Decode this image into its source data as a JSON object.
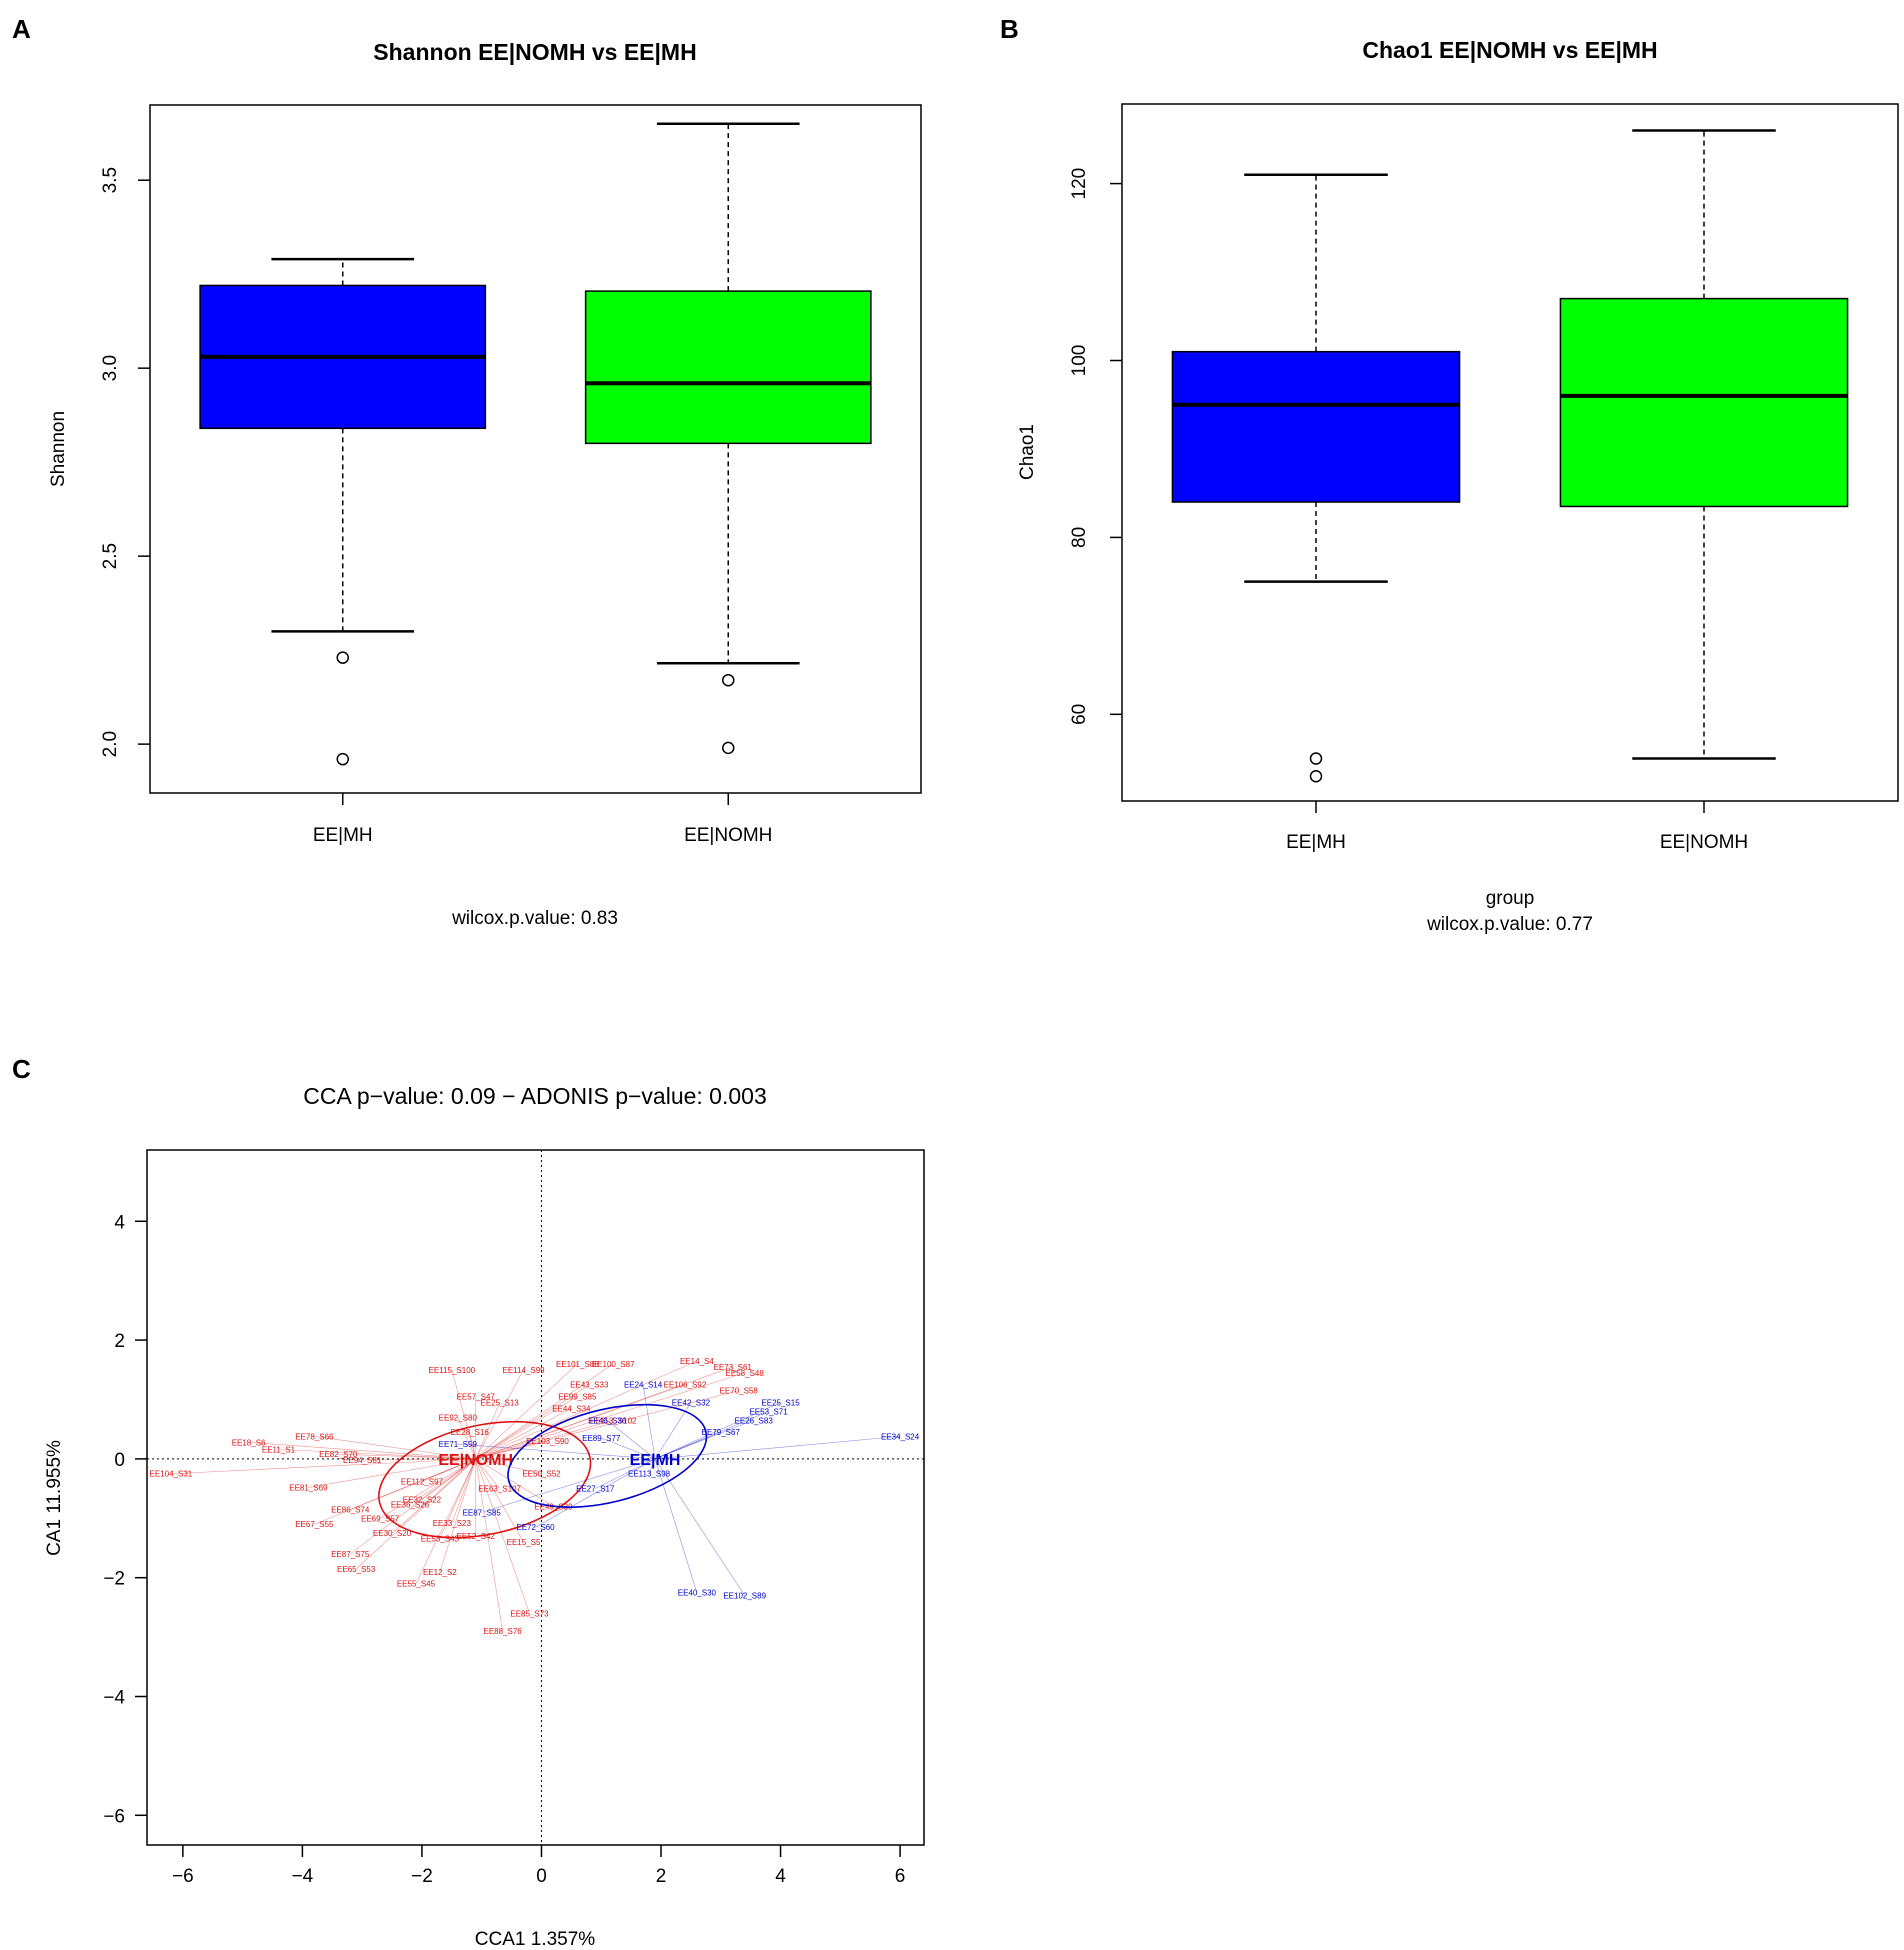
{
  "colors": {
    "mh": "#0000ff",
    "nomh": "#00ff00",
    "cca_mh": "#0000cc",
    "cca_nomh": "#dd1111"
  },
  "chart_data": [
    {
      "panel": "A",
      "type": "box",
      "title": "Shannon EE|NOMH vs EE|MH",
      "ylabel": "Shannon",
      "xlabel": "",
      "footnote": "wilcox.p.value: 0.83",
      "ylim": [
        1.87,
        3.7
      ],
      "yticks": [
        2.0,
        2.5,
        3.0,
        3.5
      ],
      "ytick_labels": [
        "2.0",
        "2.5",
        "3.0",
        "3.5"
      ],
      "categories": [
        "EE|MH",
        "EE|NOMH"
      ],
      "boxes": [
        {
          "name": "EE|MH",
          "whisker_low": 2.3,
          "q1": 2.84,
          "median": 3.03,
          "q3": 3.22,
          "whisker_high": 3.29,
          "outliers": [
            2.23,
            1.96
          ]
        },
        {
          "name": "EE|NOMH",
          "whisker_low": 2.215,
          "q1": 2.8,
          "median": 2.96,
          "q3": 3.205,
          "whisker_high": 3.65,
          "outliers": [
            2.17,
            1.99
          ]
        }
      ]
    },
    {
      "panel": "B",
      "type": "box",
      "title": "Chao1 EE|NOMH vs EE|MH",
      "ylabel": "Chao1",
      "xlabel": "group",
      "footnote": "wilcox.p.value: 0.77",
      "ylim": [
        50.2,
        129
      ],
      "yticks": [
        60,
        80,
        100,
        120
      ],
      "ytick_labels": [
        "60",
        "80",
        "100",
        "120"
      ],
      "categories": [
        "EE|MH",
        "EE|NOMH"
      ],
      "boxes": [
        {
          "name": "EE|MH",
          "whisker_low": 75,
          "q1": 84,
          "median": 95,
          "q3": 101,
          "whisker_high": 121,
          "outliers": [
            55,
            53
          ]
        },
        {
          "name": "EE|NOMH",
          "whisker_low": 55,
          "q1": 83.5,
          "median": 96,
          "q3": 107,
          "whisker_high": 126,
          "outliers": []
        }
      ]
    },
    {
      "panel": "C",
      "type": "scatter",
      "title": "CCA p−value: 0.09 − ADONIS p−value: 0.003",
      "xlabel": "CCA1  1.357%",
      "ylabel": "CA1  11.955%",
      "xlim": [
        -6.6,
        6.4
      ],
      "ylim": [
        -6.5,
        5.2
      ],
      "xticks": [
        -6,
        -4,
        -2,
        0,
        2,
        4,
        6
      ],
      "xtick_labels": [
        "−6",
        "−4",
        "−2",
        "0",
        "2",
        "4",
        "6"
      ],
      "yticks": [
        -6,
        -4,
        -2,
        0,
        2,
        4
      ],
      "ytick_labels": [
        "−6",
        "−4",
        "−2",
        "0",
        "2",
        "4"
      ],
      "groups": [
        {
          "name": "EE|NOMH",
          "centroid": [
            -1.1,
            0.0
          ],
          "ellipse": {
            "cx": -0.95,
            "cy": -0.35,
            "rx": 1.8,
            "ry": 0.92,
            "angle_deg": 12
          },
          "points": [
            {
              "label": "EE104_S31",
              "x": -6.2,
              "y": -0.25
            },
            {
              "label": "EE18_S6",
              "x": -4.9,
              "y": 0.28
            },
            {
              "label": "EE11_S1",
              "x": -4.4,
              "y": 0.16
            },
            {
              "label": "EE78_S66",
              "x": -3.8,
              "y": 0.38
            },
            {
              "label": "EE81_S69",
              "x": -3.9,
              "y": -0.48
            },
            {
              "label": "EE82_S70",
              "x": -3.4,
              "y": 0.08
            },
            {
              "label": "EE94_S81",
              "x": -3.0,
              "y": -0.02
            },
            {
              "label": "EE86_S74",
              "x": -3.2,
              "y": -0.85
            },
            {
              "label": "EE67_S55",
              "x": -3.8,
              "y": -1.1
            },
            {
              "label": "EE87_S75",
              "x": -3.2,
              "y": -1.6
            },
            {
              "label": "EE65_S53",
              "x": -3.1,
              "y": -1.85
            },
            {
              "label": "EE69_S57",
              "x": -2.7,
              "y": -1.0
            },
            {
              "label": "EE30_S20",
              "x": -2.5,
              "y": -1.25
            },
            {
              "label": "EE55_S45",
              "x": -2.1,
              "y": -2.1
            },
            {
              "label": "EE12_S2",
              "x": -1.7,
              "y": -1.9
            },
            {
              "label": "EE32_S22",
              "x": -2.0,
              "y": -0.68
            },
            {
              "label": "EE36_S26",
              "x": -2.2,
              "y": -0.77
            },
            {
              "label": "EE33_S23",
              "x": -1.5,
              "y": -1.08
            },
            {
              "label": "EE53_S43",
              "x": -1.7,
              "y": -1.34
            },
            {
              "label": "EE52_S42",
              "x": -1.1,
              "y": -1.3
            },
            {
              "label": "EE112_S97",
              "x": -2.0,
              "y": -0.38
            },
            {
              "label": "EE115_S100",
              "x": -1.5,
              "y": 1.5
            },
            {
              "label": "EE114_S99",
              "x": -0.3,
              "y": 1.5
            },
            {
              "label": "EE57_S47",
              "x": -1.1,
              "y": 1.05
            },
            {
              "label": "EE92_S80",
              "x": -1.4,
              "y": 0.7
            },
            {
              "label": "EE25_S13",
              "x": -0.7,
              "y": 0.95
            },
            {
              "label": "EE28_S16",
              "x": -1.2,
              "y": 0.45
            },
            {
              "label": "EE101_S88",
              "x": 0.6,
              "y": 1.6
            },
            {
              "label": "EE100_S87",
              "x": 1.2,
              "y": 1.6
            },
            {
              "label": "EE43_S33",
              "x": 0.8,
              "y": 1.25
            },
            {
              "label": "EE99_S85",
              "x": 0.6,
              "y": 1.05
            },
            {
              "label": "EE44_S34",
              "x": 0.5,
              "y": 0.85
            },
            {
              "label": "EE14_S4",
              "x": 2.6,
              "y": 1.65
            },
            {
              "label": "EE73_S61",
              "x": 3.2,
              "y": 1.55
            },
            {
              "label": "EE58_S48",
              "x": 3.4,
              "y": 1.45
            },
            {
              "label": "EE106_S92",
              "x": 2.4,
              "y": 1.25
            },
            {
              "label": "EE70_S58",
              "x": 3.3,
              "y": 1.15
            },
            {
              "label": "EE113_S102",
              "x": 1.2,
              "y": 0.65
            },
            {
              "label": "EE103_S90",
              "x": 0.1,
              "y": 0.3
            },
            {
              "label": "EE50_S52",
              "x": 0.0,
              "y": -0.25
            },
            {
              "label": "EE63_S107",
              "x": -0.7,
              "y": -0.5
            },
            {
              "label": "EE49_S39",
              "x": 0.2,
              "y": -0.8
            },
            {
              "label": "EE15_S5",
              "x": -0.3,
              "y": -1.4
            },
            {
              "label": "EE85_S73",
              "x": -0.2,
              "y": -2.6
            },
            {
              "label": "EE88_S76",
              "x": -0.65,
              "y": -2.9
            }
          ]
        },
        {
          "name": "EE|MH",
          "centroid": [
            1.9,
            0.0
          ],
          "ellipse": {
            "cx": 1.1,
            "cy": 0.05,
            "rx": 1.7,
            "ry": 0.78,
            "angle_deg": 14
          },
          "points": [
            {
              "label": "EE34_S24",
              "x": 6.0,
              "y": 0.38
            },
            {
              "label": "EE40_S30",
              "x": 2.6,
              "y": -2.25
            },
            {
              "label": "EE102_S89",
              "x": 3.4,
              "y": -2.3
            },
            {
              "label": "EE25_S15",
              "x": 4.0,
              "y": 0.95
            },
            {
              "label": "EE53_S71",
              "x": 3.8,
              "y": 0.8
            },
            {
              "label": "EE26_S83",
              "x": 3.55,
              "y": 0.65
            },
            {
              "label": "EE79_S67",
              "x": 3.0,
              "y": 0.45
            },
            {
              "label": "EE42_S32",
              "x": 2.5,
              "y": 0.95
            },
            {
              "label": "EE24_S14",
              "x": 1.7,
              "y": 1.25
            },
            {
              "label": "EE71_S59",
              "x": -1.4,
              "y": 0.25
            },
            {
              "label": "EE27_S17",
              "x": 0.9,
              "y": -0.5
            },
            {
              "label": "EE113_S98",
              "x": 1.8,
              "y": -0.25
            },
            {
              "label": "EE72_S60",
              "x": -0.1,
              "y": -1.15
            },
            {
              "label": "EE87_S85",
              "x": -1.0,
              "y": -0.9
            },
            {
              "label": "EE89_S77",
              "x": 1.0,
              "y": 0.35
            },
            {
              "label": "EE46_S36",
              "x": 1.1,
              "y": 0.65
            }
          ]
        }
      ]
    }
  ],
  "panel_letters": [
    "A",
    "B",
    "C"
  ]
}
